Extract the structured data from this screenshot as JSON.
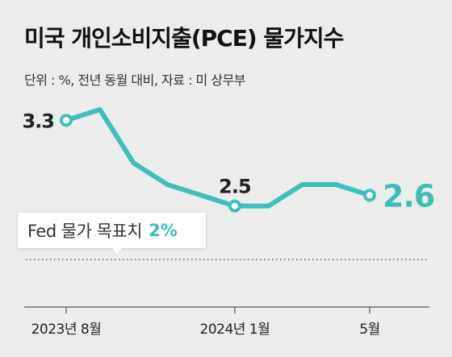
{
  "title": "미국 개인소비지출(PCE) 물가지수",
  "subtitle": "단위 : %, 전년 동월 대비, 자료 : 미 상무부",
  "colors": {
    "line": "#3dbfba",
    "accent": "#3bbdb8",
    "background": "#ececec"
  },
  "callout": {
    "label": "Fed 물가 목표치",
    "value": "2%"
  },
  "chart_data": {
    "type": "line",
    "x": [
      "2023-08",
      "2023-09",
      "2023-10",
      "2023-11",
      "2023-12",
      "2024-01",
      "2024-02",
      "2024-03",
      "2024-04",
      "2024-05"
    ],
    "series": [
      {
        "values": [
          3.3,
          3.4,
          2.9,
          2.7,
          2.6,
          2.5,
          2.5,
          2.7,
          2.7,
          2.6
        ]
      }
    ],
    "point_labels": [
      {
        "index": 0,
        "text": "3.3"
      },
      {
        "index": 5,
        "text": "2.5"
      },
      {
        "index": 9,
        "text": "2.6"
      }
    ],
    "x_tick_labels": [
      {
        "index": 0,
        "text": "2023년 8월"
      },
      {
        "index": 5,
        "text": "2024년 1월"
      },
      {
        "index": 9,
        "text": "5월"
      }
    ],
    "reference_line": {
      "value": 2.0
    },
    "ylim": [
      2.0,
      3.4
    ]
  }
}
